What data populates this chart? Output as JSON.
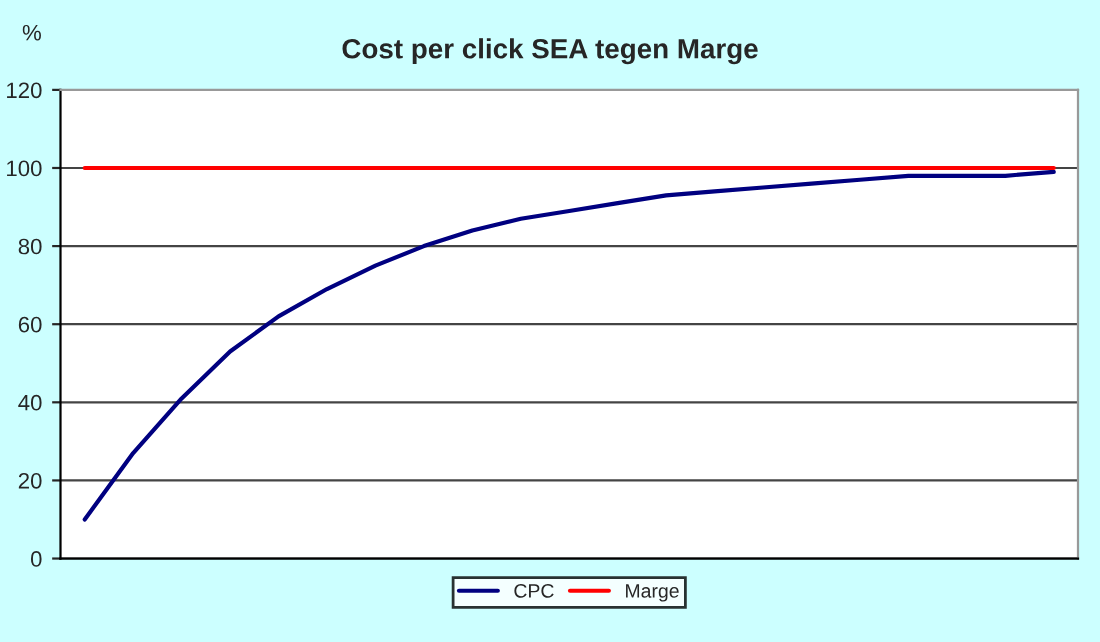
{
  "chart_data": {
    "type": "line",
    "title": "Cost per click SEA tegen Marge",
    "ylabel": "%",
    "categories": [
      null,
      null,
      null,
      null,
      null,
      null,
      null,
      null,
      null,
      null,
      null,
      null,
      null,
      null,
      null,
      null,
      null,
      null,
      null,
      null,
      null
    ],
    "series": [
      {
        "name": "CPC",
        "color": "#000080",
        "values": [
          10,
          27,
          41,
          53,
          62,
          69,
          75,
          80,
          84,
          87,
          89,
          91,
          93,
          94,
          95,
          96,
          97,
          98,
          98,
          98,
          99
        ]
      },
      {
        "name": "Marge",
        "color": "#ff0000",
        "values": [
          100,
          100,
          100,
          100,
          100,
          100,
          100,
          100,
          100,
          100,
          100,
          100,
          100,
          100,
          100,
          100,
          100,
          100,
          100,
          100,
          100
        ]
      }
    ],
    "ylim": [
      0,
      120
    ],
    "yticks": [
      0,
      20,
      40,
      60,
      80,
      100,
      120
    ],
    "grid": "y",
    "legend": "bottom",
    "marker": "none",
    "line_style": "solid"
  }
}
